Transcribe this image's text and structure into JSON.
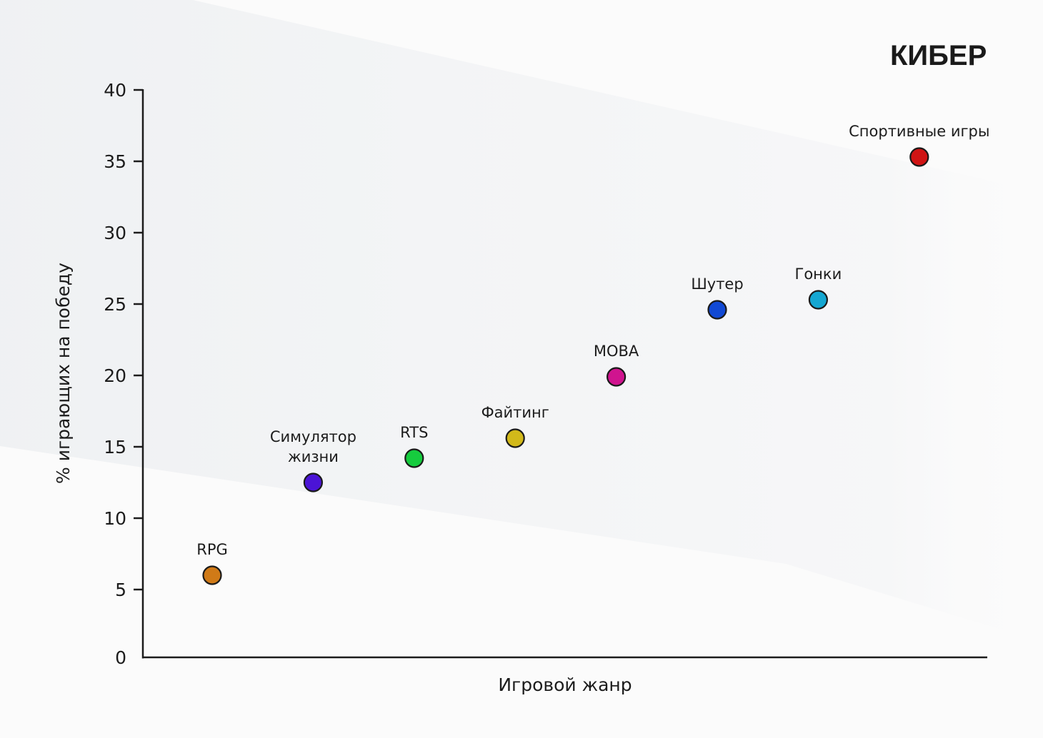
{
  "brand": {
    "logo_text": "КИБЕР"
  },
  "chart_data": {
    "type": "scatter",
    "title": "",
    "xlabel": "Игровой жанр",
    "ylabel": "% играющих на победу",
    "ylim": [
      0,
      40
    ],
    "yticks": [
      0,
      5,
      10,
      15,
      20,
      25,
      30,
      35,
      40
    ],
    "grid": false,
    "legend": "none",
    "points": [
      {
        "label": [
          "RPG"
        ],
        "category": "RPG",
        "value": 6.0,
        "color": "#d07a17"
      },
      {
        "label": [
          "Симулятор",
          "жизни"
        ],
        "category": "Симулятор жизни",
        "value": 12.5,
        "color": "#4b14d6"
      },
      {
        "label": [
          "RTS"
        ],
        "category": "RTS",
        "value": 14.2,
        "color": "#16cc3e"
      },
      {
        "label": [
          "Файтинг"
        ],
        "category": "Файтинг",
        "value": 15.6,
        "color": "#d2b91a"
      },
      {
        "label": [
          "MOBA"
        ],
        "category": "MOBA",
        "value": 19.9,
        "color": "#d0148f"
      },
      {
        "label": [
          "Шутер"
        ],
        "category": "Шутер",
        "value": 24.6,
        "color": "#1149d4"
      },
      {
        "label": [
          "Гонки"
        ],
        "category": "Гонки",
        "value": 25.3,
        "color": "#14a7d2"
      },
      {
        "label": [
          "Спортивные игры"
        ],
        "category": "Спортивные игры",
        "value": 35.3,
        "color": "#d01414"
      }
    ]
  }
}
